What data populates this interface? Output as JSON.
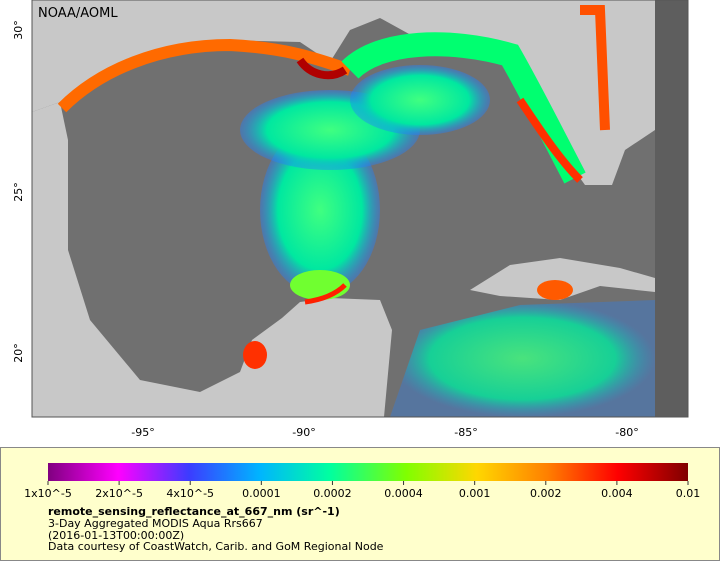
{
  "header": {
    "source": "NOAA/AOML"
  },
  "axes": {
    "lat_ticks": [
      "30°",
      "25°",
      "20°"
    ],
    "lon_ticks": [
      "-95°",
      "-90°",
      "-85°",
      "-80°"
    ]
  },
  "colorbar": {
    "labels": [
      "1x10^-5",
      "2x10^-5",
      "4x10^-5",
      "0.0001",
      "0.0002",
      "0.0004",
      "0.001",
      "0.002",
      "0.004",
      "0.01"
    ]
  },
  "caption": {
    "title": "remote_sensing_reflectance_at_667_nm (sr^-1)",
    "lines": [
      "3-Day Aggregated MODIS Aqua Rrs667",
      "(2016-01-13T00:00:00Z)",
      "Data courtesy of CoastWatch, Carib. and GoM Regional Node"
    ]
  }
}
